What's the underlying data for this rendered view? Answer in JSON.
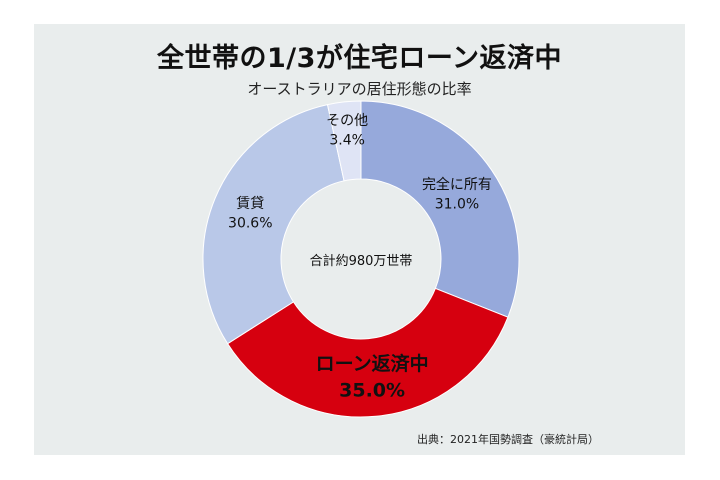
{
  "title": "全世帯の1/3が住宅ローン返済中",
  "subtitle": "オーストラリアの居住形態の比率",
  "center_label": "合計約980万世帯",
  "source": "出典：2021年国勢調査（豪統計局）",
  "chart_data": {
    "type": "pie",
    "donut": true,
    "categories": [
      "完全に所有",
      "ローン返済中",
      "賃貸",
      "その他"
    ],
    "values": [
      31.0,
      35.0,
      30.6,
      3.4
    ],
    "value_labels": [
      "31.0%",
      "35.0%",
      "30.6%",
      "3.4%"
    ],
    "colors": [
      "#96a9db",
      "#d6000f",
      "#b9c8e8",
      "#dfe4f5"
    ],
    "highlight": "ローン返済中",
    "start_angle": "12 o'clock",
    "direction": "clockwise",
    "legend": "none (labels on slices)"
  }
}
